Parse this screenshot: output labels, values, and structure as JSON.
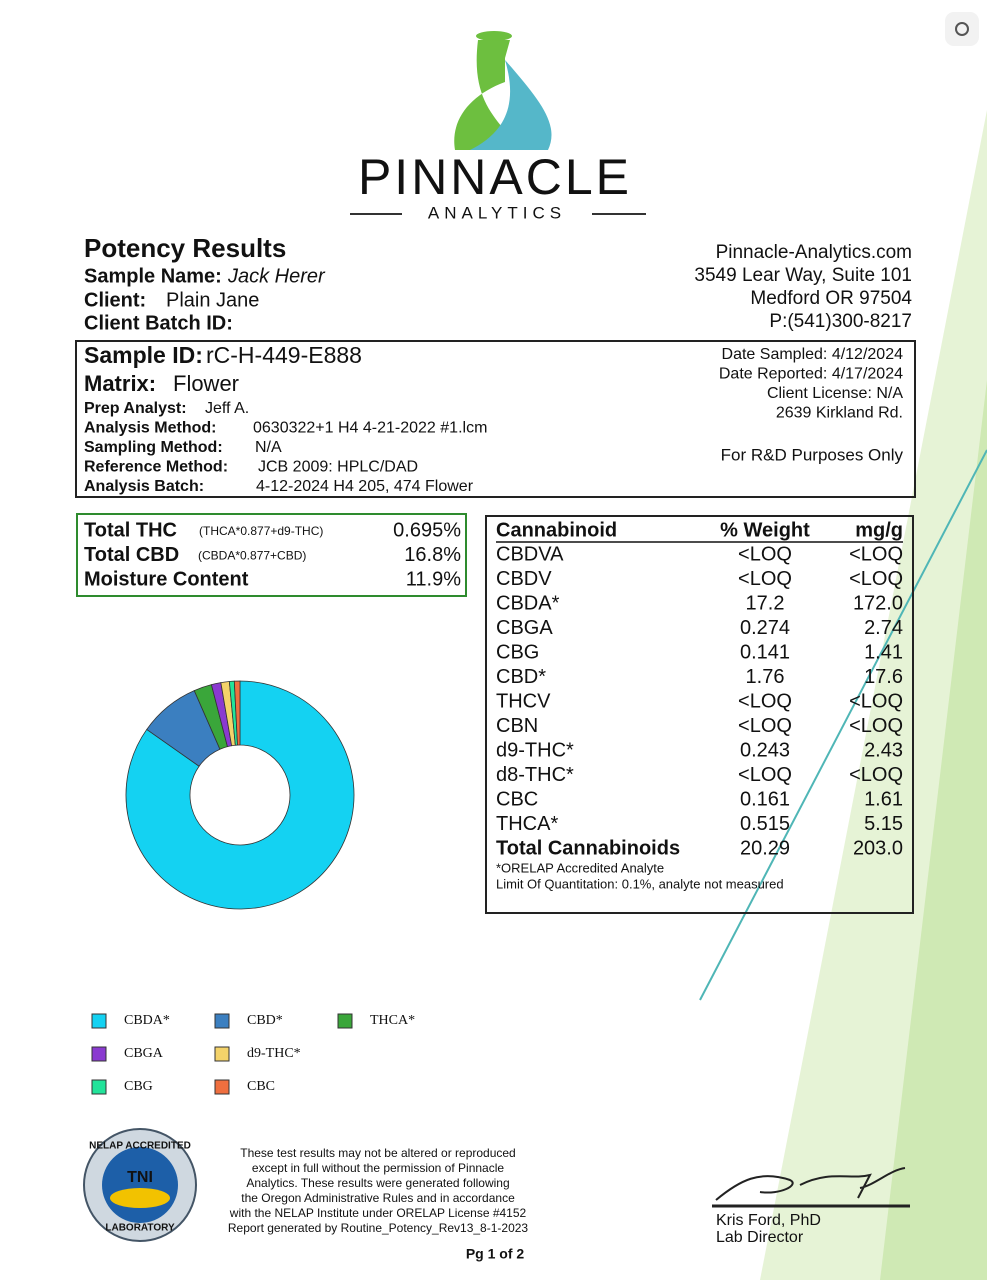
{
  "header": {
    "brand": "PINNACLE",
    "sub": "ANALYTICS",
    "title": "Potency Results",
    "sample_name_label": "Sample Name:",
    "sample_name": "Jack Herer",
    "client_label": "Client:",
    "client": "Plain Jane",
    "batch_label": "Client Batch ID:",
    "address": [
      "Pinnacle-Analytics.com",
      "3549 Lear Way, Suite 101",
      "Medford OR 97504",
      "P:(541)300-8217"
    ]
  },
  "sample": {
    "id_label": "Sample ID:",
    "id": "rC-H-449-E888",
    "matrix_label": "Matrix:",
    "matrix": "Flower",
    "fields": [
      [
        "Prep Analyst:",
        "Jeff A."
      ],
      [
        "Analysis Method:",
        "0630322+1 H4 4-21-2022 #1.lcm"
      ],
      [
        "Sampling Method:",
        "N/A"
      ],
      [
        "Reference Method:",
        "JCB 2009: HPLC/DAD"
      ],
      [
        "Analysis Batch:",
        "4-12-2024 H4 205, 474 Flower"
      ]
    ],
    "right": [
      "Date Sampled:  4/12/2024",
      "Date Reported: 4/17/2024",
      "Client License: N/A",
      "2639 Kirkland Rd."
    ],
    "note": "For R&D Purposes Only"
  },
  "summary": [
    [
      "Total THC",
      "(THCA*0.877+d9-THC)",
      "0.695%"
    ],
    [
      "Total CBD",
      "(CBDA*0.877+CBD)",
      "16.8%"
    ],
    [
      "Moisture Content",
      "",
      "11.9%"
    ]
  ],
  "table": {
    "header": [
      "Cannabinoid",
      "% Weight",
      "mg/g"
    ],
    "rows": [
      [
        "CBDVA",
        "<LOQ",
        "<LOQ"
      ],
      [
        "CBDV",
        "<LOQ",
        "<LOQ"
      ],
      [
        "CBDA*",
        "17.2",
        "172.0"
      ],
      [
        "CBGA",
        "0.274",
        "2.74"
      ],
      [
        "CBG",
        "0.141",
        "1.41"
      ],
      [
        "CBD*",
        "1.76",
        "17.6"
      ],
      [
        "THCV",
        "<LOQ",
        "<LOQ"
      ],
      [
        "CBN",
        "<LOQ",
        "<LOQ"
      ],
      [
        "d9-THC*",
        "0.243",
        "2.43"
      ],
      [
        "d8-THC*",
        "<LOQ",
        "<LOQ"
      ],
      [
        "CBC",
        "0.161",
        "1.61"
      ],
      [
        "THCA*",
        "0.515",
        "5.15"
      ],
      [
        "Total Cannabinoids",
        "20.29",
        "203.0"
      ]
    ],
    "notes": [
      "*ORELAP Accredited Analyte",
      "Limit Of Quantitation: 0.1%, analyte not measured"
    ]
  },
  "chart_data": {
    "type": "pie",
    "categories": [
      "CBDA*",
      "CBD*",
      "THCA*",
      "CBGA",
      "d9-THC*",
      "CBG",
      "CBC"
    ],
    "values": [
      172.0,
      17.6,
      5.15,
      2.74,
      2.43,
      1.41,
      1.61
    ],
    "colors": [
      "#14d2f2",
      "#3b7fc0",
      "#3aa63a",
      "#8a3ad0",
      "#f4d36a",
      "#22e39a",
      "#ef6f3f"
    ]
  },
  "footer": {
    "badge": [
      "NELAP ACCREDITED",
      "TNI",
      "LABORATORY"
    ],
    "disclaimer": [
      "These test results may not be altered or reproduced",
      "except in full without the permission of Pinnacle",
      "Analytics. These results were generated following",
      "the Oregon Administrative Rules and in accordance",
      "with the NELAP Institute under ORELAP License #4152",
      "Report generated by Routine_Potency_Rev13_8-1-2023"
    ],
    "page": "Pg 1 of 2",
    "signer": "Kris Ford, PhD",
    "role": "Lab Director"
  }
}
